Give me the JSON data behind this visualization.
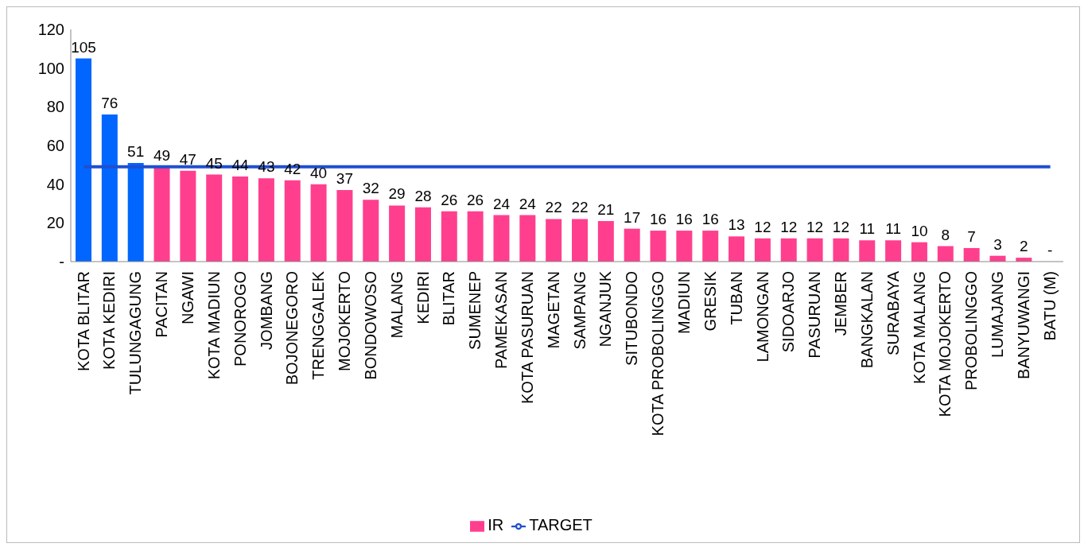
{
  "chart_data": {
    "type": "bar",
    "categories": [
      "KOTA BLITAR",
      "KOTA KEDIRI",
      "TULUNGAGUNG",
      "PACITAN",
      "NGAWI",
      "KOTA MADIUN",
      "PONOROGO",
      "JOMBANG",
      "BOJONEGORO",
      "TRENGGALEK",
      "MOJOKERTO",
      "BONDOWOSO",
      "MALANG",
      "KEDIRI",
      "BLITAR",
      "SUMENEP",
      "PAMEKASAN",
      "KOTA PASURUAN",
      "MAGETAN",
      "SAMPANG",
      "NGANJUK",
      "SITUBONDO",
      "KOTA PROBOLINGGO",
      "MADIUN",
      "GRESIK",
      "TUBAN",
      "LAMONGAN",
      "SIDOARJO",
      "PASURUAN",
      "JEMBER",
      "BANGKALAN",
      "SURABAYA",
      "KOTA MALANG",
      "KOTA MOJOKERTO",
      "PROBOLINGGO",
      "LUMAJANG",
      "BANYUWANGI",
      "BATU (M)"
    ],
    "series": [
      {
        "name": "IR",
        "color": "#ff3f8e",
        "colors": [
          "#0066ff",
          "#0066ff",
          "#0066ff",
          "#ff3f8e",
          "#ff3f8e",
          "#ff3f8e",
          "#ff3f8e",
          "#ff3f8e",
          "#ff3f8e",
          "#ff3f8e",
          "#ff3f8e",
          "#ff3f8e",
          "#ff3f8e",
          "#ff3f8e",
          "#ff3f8e",
          "#ff3f8e",
          "#ff3f8e",
          "#ff3f8e",
          "#ff3f8e",
          "#ff3f8e",
          "#ff3f8e",
          "#ff3f8e",
          "#ff3f8e",
          "#ff3f8e",
          "#ff3f8e",
          "#ff3f8e",
          "#ff3f8e",
          "#ff3f8e",
          "#ff3f8e",
          "#ff3f8e",
          "#ff3f8e",
          "#ff3f8e",
          "#ff3f8e",
          "#ff3f8e",
          "#ff3f8e",
          "#ff3f8e",
          "#ff3f8e",
          "#ff3f8e"
        ],
        "values": [
          105,
          76,
          51,
          49,
          47,
          45,
          44,
          43,
          42,
          40,
          37,
          32,
          29,
          28,
          26,
          26,
          24,
          24,
          22,
          22,
          21,
          17,
          16,
          16,
          16,
          13,
          12,
          12,
          12,
          12,
          11,
          11,
          10,
          8,
          7,
          3,
          2,
          0
        ],
        "value_labels": [
          "105",
          "76",
          "51",
          "49",
          "47",
          "45",
          "44",
          "43",
          "42",
          "40",
          "37",
          "32",
          "29",
          "28",
          "26",
          "26",
          "24",
          "24",
          "22",
          "22",
          "21",
          "17",
          "16",
          "16",
          "16",
          "13",
          "12",
          "12",
          "12",
          "12",
          "11",
          "11",
          "10",
          "8",
          "7",
          "3",
          "2",
          "-"
        ]
      },
      {
        "name": "TARGET",
        "type": "line",
        "color": "#1f4fd0",
        "values": [
          49,
          49,
          49,
          49,
          49,
          49,
          49,
          49,
          49,
          49,
          49,
          49,
          49,
          49,
          49,
          49,
          49,
          49,
          49,
          49,
          49,
          49,
          49,
          49,
          49,
          49,
          49,
          49,
          49,
          49,
          49,
          49,
          49,
          49,
          49,
          49,
          49,
          49
        ]
      }
    ],
    "ylim": [
      0,
      120
    ],
    "yticks": [
      {
        "value": 0,
        "label": "-"
      },
      20,
      40,
      60,
      80,
      100,
      120
    ],
    "legend": "bottom",
    "marker": "none"
  }
}
